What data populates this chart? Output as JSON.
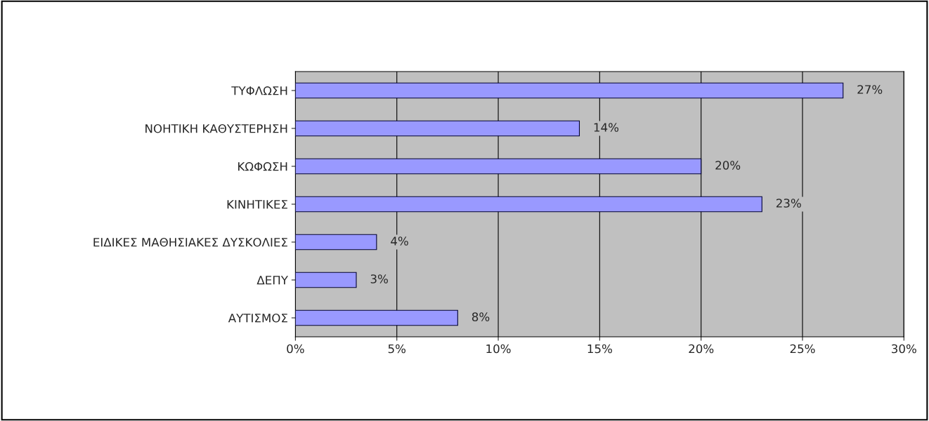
{
  "chart_data": {
    "type": "bar",
    "orientation": "horizontal",
    "categories": [
      "ΤΥΦΛΩΣΗ",
      "ΝΟΗΤΙΚΗ ΚΑΘΥΣΤΕΡΗΣΗ",
      "ΚΩΦΩΣΗ",
      "ΚΙΝΗΤΙΚΕΣ",
      "ΕΙΔΙΚΕΣ ΜΑΘΗΣΙΑΚΕΣ ΔΥΣΚΟΛΙΕΣ",
      "ΔΕΠΥ",
      "ΑΥΤΙΣΜΟΣ"
    ],
    "values": [
      27,
      14,
      20,
      23,
      4,
      3,
      8
    ],
    "value_labels": [
      "27%",
      "14%",
      "20%",
      "23%",
      "4%",
      "3%",
      "8%"
    ],
    "color": "#9999ff",
    "xlim": [
      0,
      30
    ],
    "xticks": [
      {
        "value": 0,
        "label": "0%"
      },
      {
        "value": 5,
        "label": "5%"
      },
      {
        "value": 10,
        "label": "10%"
      },
      {
        "value": 15,
        "label": "15%"
      },
      {
        "value": 20,
        "label": "20%"
      },
      {
        "value": 25,
        "label": "25%"
      },
      {
        "value": 30,
        "label": "30%"
      }
    ],
    "grid": "x",
    "legend": false
  }
}
